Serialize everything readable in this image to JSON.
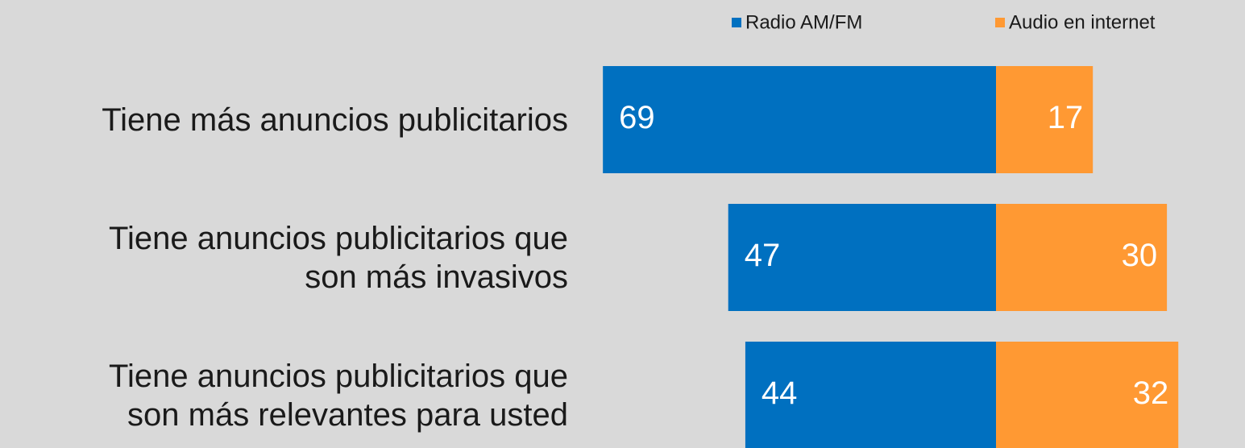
{
  "chart_data": {
    "type": "diverging_bar",
    "categories": [
      "Tiene más anuncios publicitarios",
      "Tiene anuncios publicitarios que\nson más invasivos",
      "Tiene anuncios publicitarios que\nson más relevantes para usted"
    ],
    "series": [
      {
        "name": "Radio AM/FM",
        "color": "#0070c0",
        "values": [
          69,
          47,
          44
        ]
      },
      {
        "name": "Audio en internet",
        "color": "#ff9933",
        "values": [
          17,
          30,
          32
        ]
      }
    ],
    "legend": "top-right"
  }
}
